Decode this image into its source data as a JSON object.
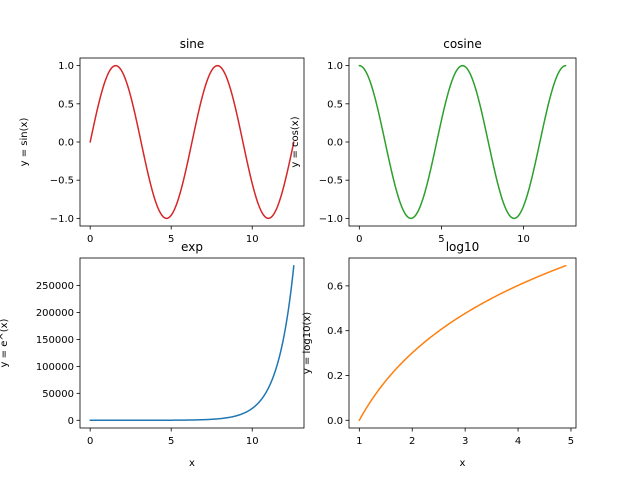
{
  "chart_data": [
    {
      "type": "line",
      "title": "sine",
      "xlabel": "",
      "ylabel": "y = sin(x)",
      "function": "sin",
      "x": [
        0,
        0.785,
        1.571,
        2.356,
        3.142,
        3.927,
        4.712,
        5.498,
        6.283,
        7.069,
        7.854,
        8.639,
        9.425,
        10.21,
        10.996,
        11.781,
        12.566
      ],
      "y": [
        0,
        0.707,
        1.0,
        0.707,
        0,
        -0.707,
        -1.0,
        -0.707,
        0,
        0.707,
        1.0,
        0.707,
        0,
        -0.707,
        -1.0,
        -0.707,
        0
      ],
      "xlim": [
        -0.628,
        13.195
      ],
      "ylim": [
        -1.1,
        1.1
      ],
      "xticks": [
        0,
        5,
        10
      ],
      "xtick_labels": [
        "0",
        "5",
        "10"
      ],
      "yticks": [
        -1.0,
        -0.5,
        0.0,
        0.5,
        1.0
      ],
      "ytick_labels": [
        "−1.0",
        "−0.5",
        "0.0",
        "0.5",
        "1.0"
      ],
      "color": "#d62728",
      "grid": false
    },
    {
      "type": "line",
      "title": "cosine",
      "xlabel": "",
      "ylabel": "y = cos(x)",
      "function": "cos",
      "x": [
        0,
        0.785,
        1.571,
        2.356,
        3.142,
        3.927,
        4.712,
        5.498,
        6.283,
        7.069,
        7.854,
        8.639,
        9.425,
        10.21,
        10.996,
        11.781,
        12.566
      ],
      "y": [
        1.0,
        0.707,
        0,
        -0.707,
        -1.0,
        -0.707,
        0,
        0.707,
        1.0,
        0.707,
        0,
        -0.707,
        -1.0,
        -0.707,
        0,
        0.707,
        1.0
      ],
      "xlim": [
        -0.628,
        13.195
      ],
      "ylim": [
        -1.1,
        1.1
      ],
      "xticks": [
        0,
        5,
        10
      ],
      "xtick_labels": [
        "0",
        "5",
        "10"
      ],
      "yticks": [
        -1.0,
        -0.5,
        0.0,
        0.5,
        1.0
      ],
      "ytick_labels": [
        "−1.0",
        "−0.5",
        "0.0",
        "0.5",
        "1.0"
      ],
      "color": "#2ca02c",
      "grid": false
    },
    {
      "type": "line",
      "title": "exp",
      "xlabel": "x",
      "ylabel": "y = e^(x)",
      "function": "exp",
      "x": [
        0,
        2,
        4,
        6,
        8,
        9,
        10,
        10.5,
        11,
        11.5,
        12,
        12.3,
        12.566
      ],
      "y": [
        1,
        7.4,
        54.6,
        403,
        2981,
        8103,
        22026,
        36316,
        59874,
        98716,
        162755,
        219696,
        286751
      ],
      "xlim": [
        -0.628,
        13.195
      ],
      "ylim": [
        -14337,
        301089
      ],
      "xticks": [
        0,
        5,
        10
      ],
      "xtick_labels": [
        "0",
        "5",
        "10"
      ],
      "yticks": [
        0,
        50000,
        100000,
        150000,
        200000,
        250000
      ],
      "ytick_labels": [
        "0",
        "50000",
        "100000",
        "150000",
        "200000",
        "250000"
      ],
      "color": "#1f77b4",
      "grid": false
    },
    {
      "type": "line",
      "title": "log10",
      "xlabel": "x",
      "ylabel": "y = log10(x)",
      "function": "log10",
      "x": [
        1.0,
        1.5,
        2.0,
        2.5,
        3.0,
        3.5,
        4.0,
        4.5,
        4.9
      ],
      "y": [
        0,
        0.176,
        0.301,
        0.398,
        0.477,
        0.544,
        0.602,
        0.653,
        0.69
      ],
      "xlim": [
        0.805,
        5.095
      ],
      "ylim": [
        -0.0345,
        0.7245
      ],
      "xticks": [
        1,
        2,
        3,
        4,
        5
      ],
      "xtick_labels": [
        "1",
        "2",
        "3",
        "4",
        "5"
      ],
      "yticks": [
        0.0,
        0.2,
        0.4,
        0.6
      ],
      "ytick_labels": [
        "0.0",
        "0.2",
        "0.4",
        "0.6"
      ],
      "color": "#ff7f0e",
      "grid": false
    }
  ]
}
